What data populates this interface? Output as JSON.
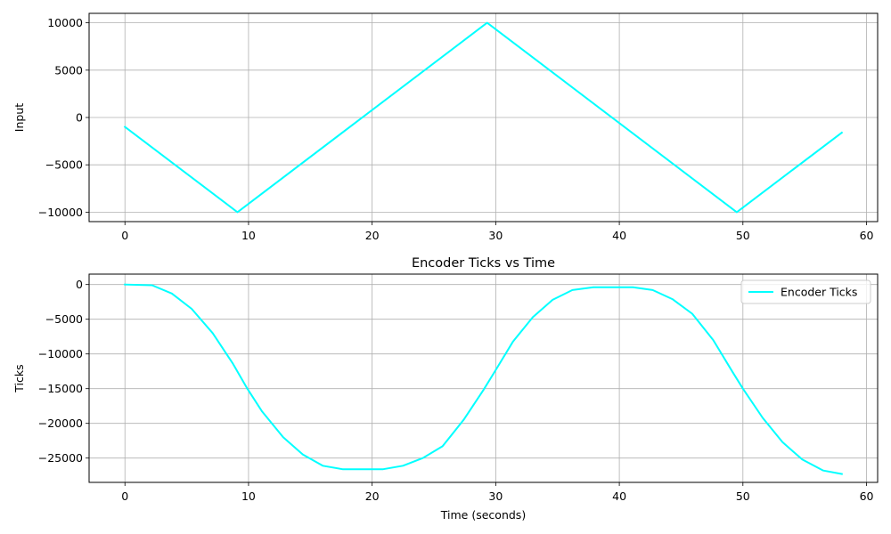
{
  "chart_data": [
    {
      "type": "line",
      "title": "",
      "xlabel": "",
      "ylabel": "Input",
      "xlim": [
        -2.9,
        60.9
      ],
      "ylim": [
        -11000,
        11000
      ],
      "xticks": [
        0,
        10,
        20,
        30,
        40,
        50,
        60
      ],
      "yticks": [
        -10000,
        -5000,
        0,
        5000,
        10000
      ],
      "xtick_labels": [
        "0",
        "10",
        "20",
        "30",
        "40",
        "50",
        "60"
      ],
      "ytick_labels": [
        "−10000",
        "−5000",
        "0",
        "5000",
        "10000"
      ],
      "grid": true,
      "legend": null,
      "series": [
        {
          "color": "#00ffff",
          "x": [
            0,
            9.1,
            29.3,
            49.5,
            58.0
          ],
          "y": [
            -1000,
            -10000,
            10000,
            -10000,
            -1600
          ]
        }
      ]
    },
    {
      "type": "line",
      "title": "Encoder Ticks vs Time",
      "xlabel": "Time (seconds)",
      "ylabel": "Ticks",
      "xlim": [
        -2.9,
        60.9
      ],
      "ylim": [
        -28500,
        1500
      ],
      "xticks": [
        0,
        10,
        20,
        30,
        40,
        50,
        60
      ],
      "yticks": [
        0,
        -5000,
        -10000,
        -15000,
        -20000,
        -25000
      ],
      "xtick_labels": [
        "0",
        "10",
        "20",
        "30",
        "40",
        "50",
        "60"
      ],
      "ytick_labels": [
        "0",
        "−5000",
        "−10000",
        "−15000",
        "−20000",
        "−25000"
      ],
      "grid": true,
      "legend": "top-right",
      "series": [
        {
          "name": "Encoder Ticks",
          "color": "#00ffff",
          "x": [
            0,
            2.2,
            3.8,
            5.4,
            7.1,
            8.7,
            9.9,
            11.1,
            12.8,
            14.4,
            16.0,
            17.6,
            19.3,
            20.9,
            22.5,
            24.1,
            25.7,
            27.4,
            29.0,
            29.9,
            31.4,
            33.0,
            34.6,
            36.2,
            37.9,
            39.5,
            41.1,
            42.7,
            44.3,
            45.9,
            47.6,
            49.2,
            50.0,
            51.6,
            53.2,
            54.8,
            56.5,
            58.0
          ],
          "y": [
            0,
            -100,
            -1300,
            -3500,
            -7000,
            -11300,
            -15000,
            -18300,
            -22000,
            -24500,
            -26100,
            -26600,
            -26600,
            -26600,
            -26100,
            -25000,
            -23300,
            -19500,
            -15200,
            -12600,
            -8200,
            -4700,
            -2200,
            -800,
            -400,
            -400,
            -400,
            -800,
            -2100,
            -4200,
            -8000,
            -12700,
            -15000,
            -19200,
            -22700,
            -25200,
            -26800,
            -27300
          ]
        }
      ]
    }
  ]
}
